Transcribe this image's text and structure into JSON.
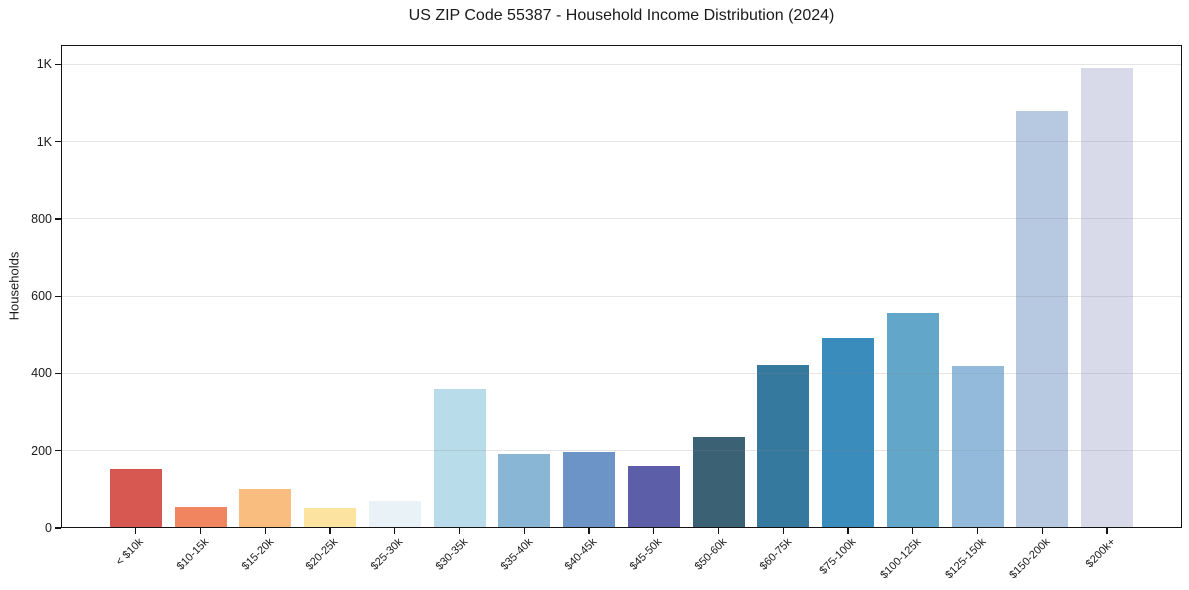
{
  "chart_data": {
    "type": "bar",
    "title": "US ZIP Code 55387 - Household Income Distribution (2024)",
    "xlabel": "",
    "ylabel": "Households",
    "categories": [
      "< $10k",
      "$10-15k",
      "$15-20k",
      "$20-25k",
      "$25-30k",
      "$30-35k",
      "$35-40k",
      "$40-45k",
      "$45-50k",
      "$50-60k",
      "$60-75k",
      "$75-100k",
      "$100-125k",
      "$125-150k",
      "$150-200k",
      "$200k+"
    ],
    "values": [
      154,
      55,
      100,
      52,
      69,
      361,
      191,
      198,
      161,
      235,
      421,
      493,
      556,
      419,
      1079,
      1190
    ],
    "bar_colors": [
      "#d65850",
      "#f0855f",
      "#fabd80",
      "#fce3a0",
      "#e9f2f7",
      "#b9dcea",
      "#8ab6d6",
      "#6d94c6",
      "#5c5fa8",
      "#3a6174",
      "#35799f",
      "#3a8cbd",
      "#62a6c9",
      "#93badb",
      "#b7c9e1",
      "#d8dae9"
    ],
    "y_ticks": [
      {
        "value": 0,
        "label": "0"
      },
      {
        "value": 200,
        "label": "200"
      },
      {
        "value": 400,
        "label": "400"
      },
      {
        "value": 600,
        "label": "600"
      },
      {
        "value": 800,
        "label": "800"
      },
      {
        "value": 1000,
        "label": "1K"
      },
      {
        "value": 1200,
        "label": "1K"
      }
    ],
    "ylim": [
      0,
      1250
    ],
    "grid": "horizontal-only",
    "legend": "none",
    "x_tick_rotation_deg": 45
  },
  "colors": {
    "background": "#ffffff",
    "text": "#1a1a1a",
    "spine": "#141414",
    "gridline_rgba": "135,135,135,0.22"
  }
}
